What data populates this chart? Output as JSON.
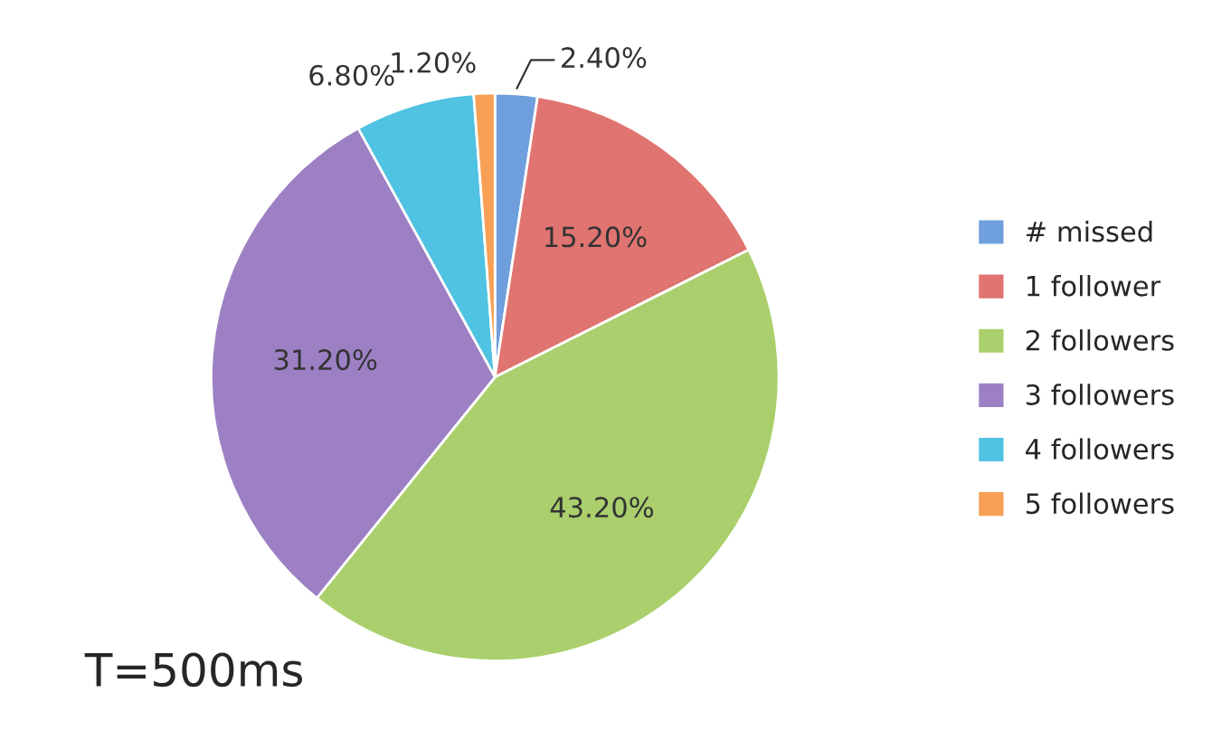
{
  "chart_data": {
    "type": "pie",
    "categories": [
      "# missed",
      "1 follower",
      "2 followers",
      "3 followers",
      "4 followers",
      "5 followers"
    ],
    "values": [
      2.4,
      15.2,
      43.2,
      31.2,
      6.8,
      1.2
    ],
    "value_labels": [
      "2.40%",
      "15.20%",
      "43.20%",
      "31.20%",
      "6.80%",
      "1.20%"
    ],
    "colors": [
      "#6f9fdc",
      "#e07470",
      "#aacf6c",
      "#9d80c4",
      "#50c2e2",
      "#f7a055"
    ],
    "legend": "right",
    "annotations": [
      "T=500ms"
    ]
  }
}
